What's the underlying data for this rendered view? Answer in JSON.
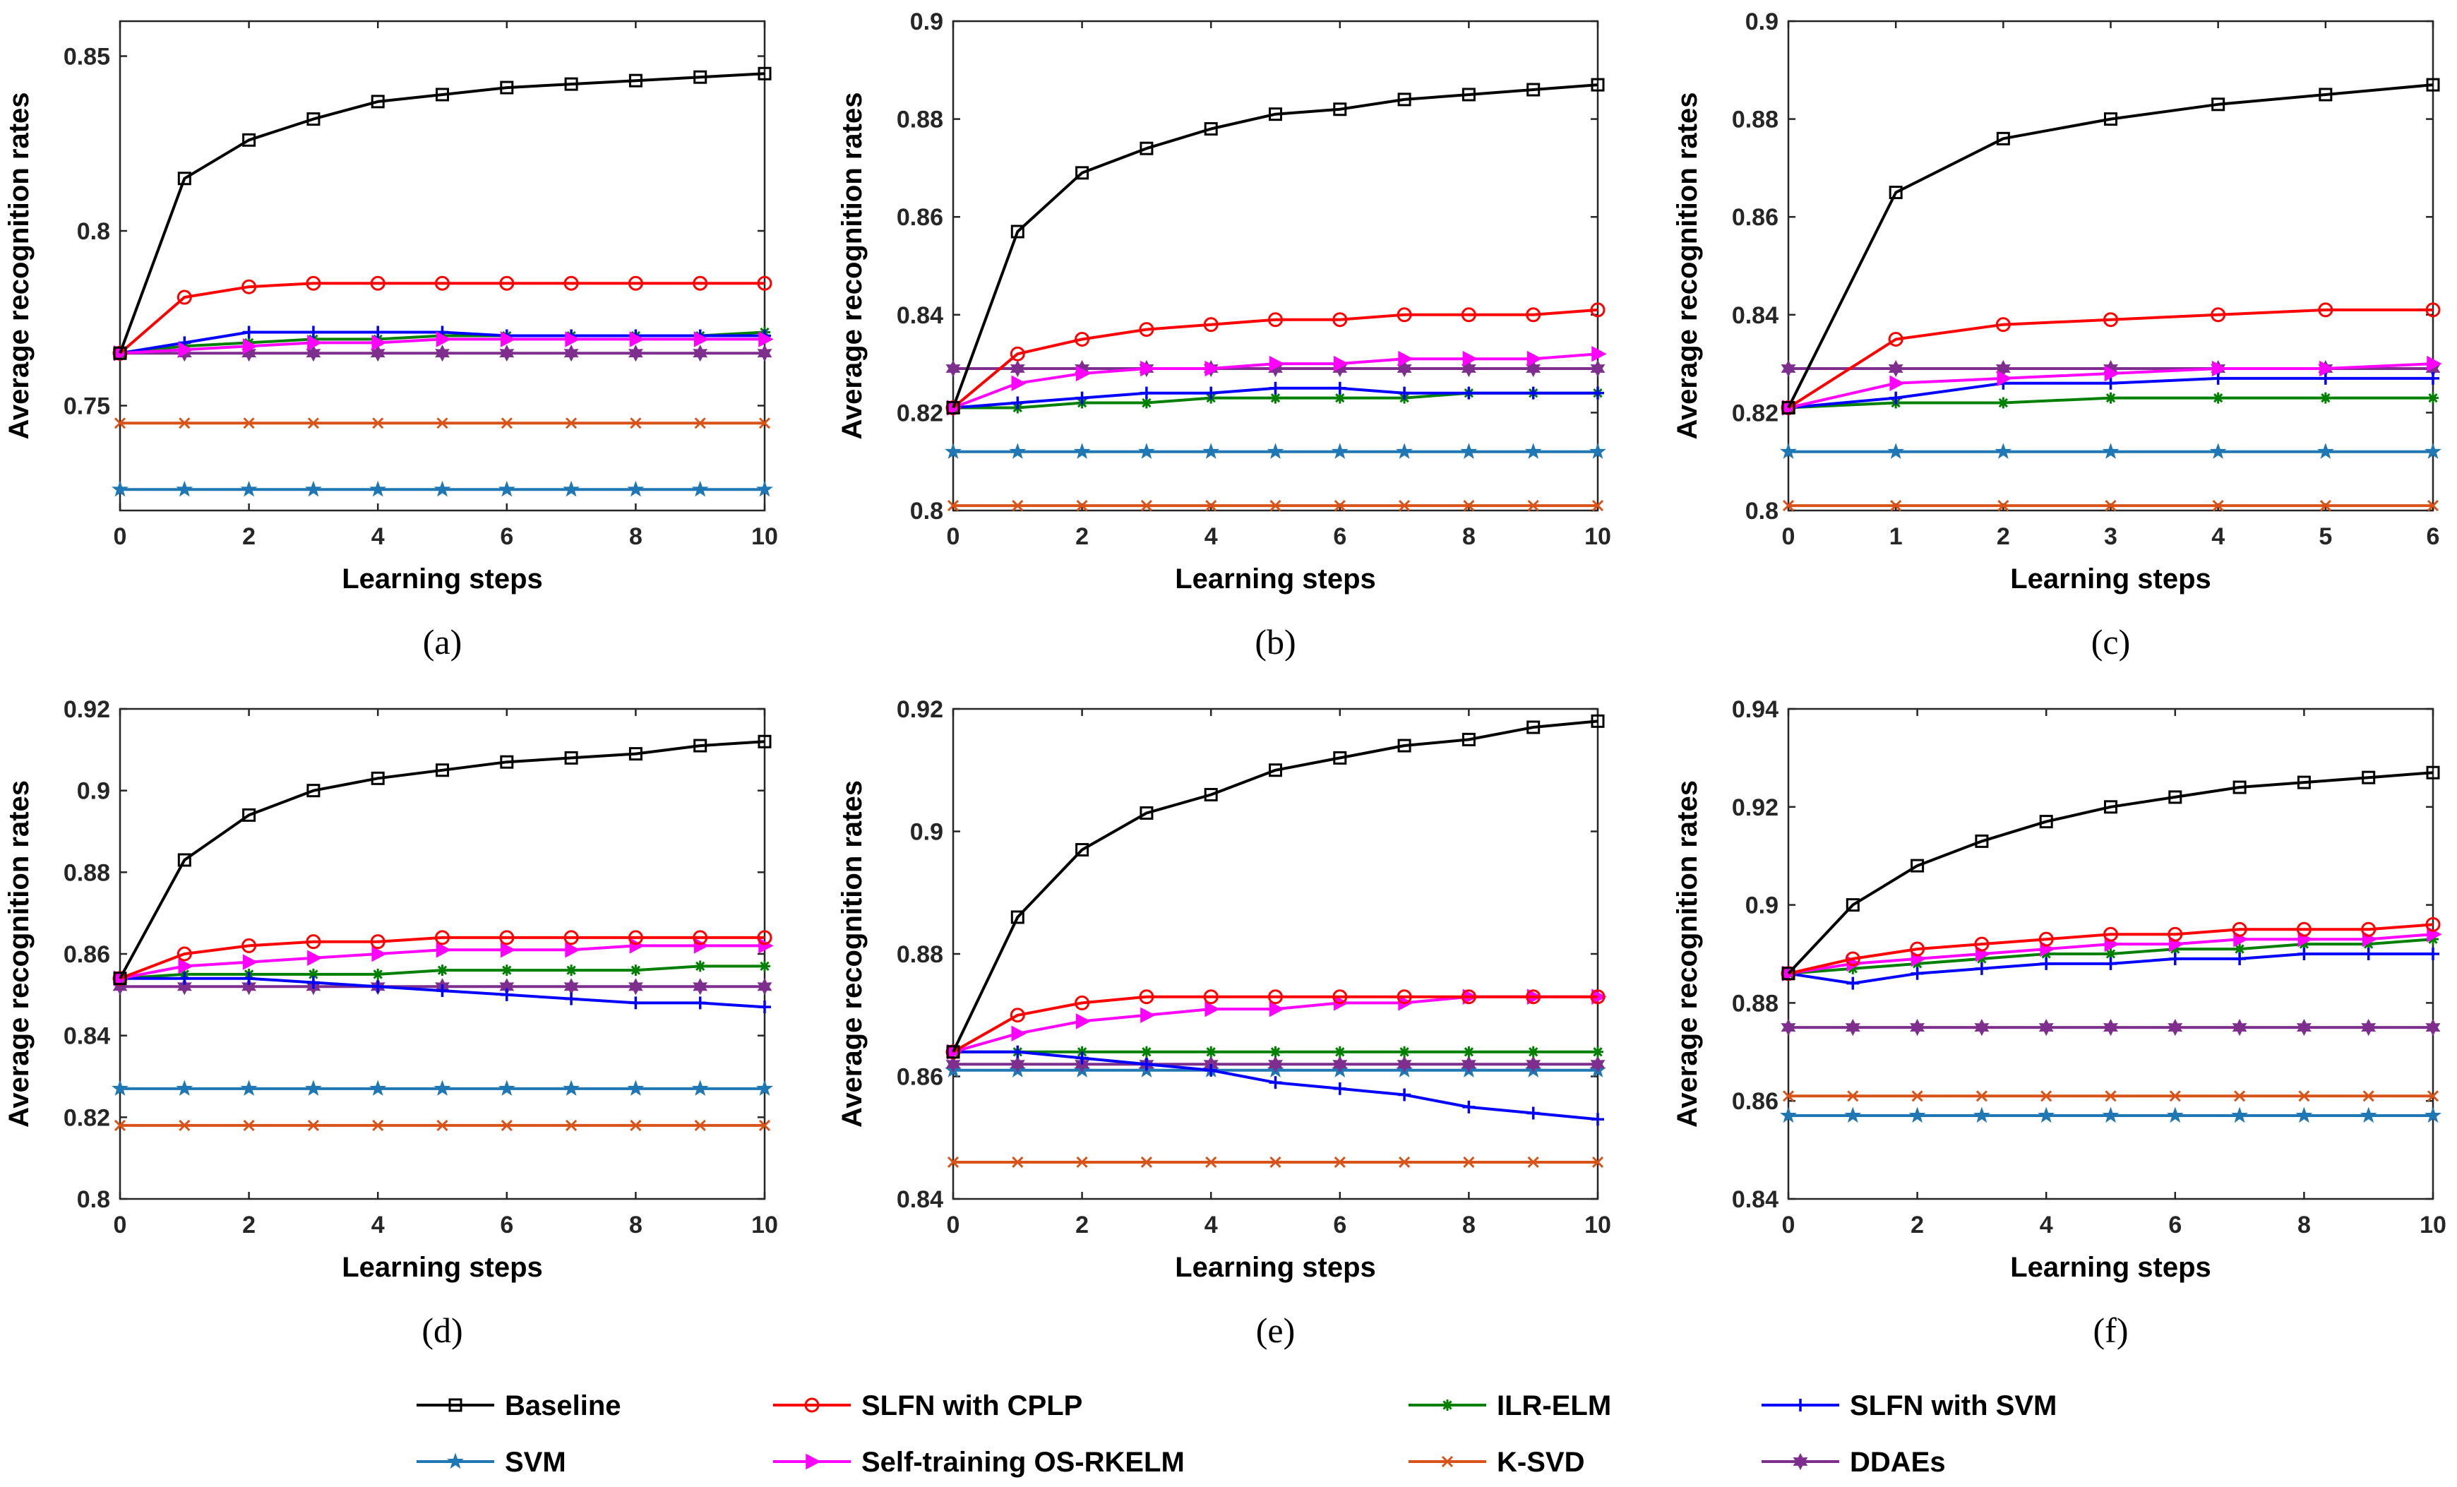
{
  "series_styles": [
    {
      "name": "Baseline",
      "color": "#000000",
      "marker": "square"
    },
    {
      "name": "SLFN with CPLP",
      "color": "#ff0000",
      "marker": "circle"
    },
    {
      "name": "ILR-ELM",
      "color": "#008000",
      "marker": "asterisk"
    },
    {
      "name": "SLFN with SVM",
      "color": "#0000ff",
      "marker": "plus"
    },
    {
      "name": "SVM",
      "color": "#1f77b4",
      "marker": "star"
    },
    {
      "name": "Self-training OS-RKELM",
      "color": "#ff00ff",
      "marker": "triangle-right"
    },
    {
      "name": "K-SVD",
      "color": "#d95319",
      "marker": "x"
    },
    {
      "name": "DDAEs",
      "color": "#7e2f8e",
      "marker": "hexagram"
    }
  ],
  "legend_order": [
    "Baseline",
    "SLFN with CPLP",
    "ILR-ELM",
    "SLFN with SVM",
    "SVM",
    "Self-training OS-RKELM",
    "K-SVD",
    "DDAEs"
  ],
  "chart_data": [
    {
      "type": "line",
      "caption": "(a)",
      "xlabel": "Learning steps",
      "ylabel": "Average recognition rates",
      "x": [
        0,
        1,
        2,
        3,
        4,
        5,
        6,
        7,
        8,
        9,
        10
      ],
      "xlim": [
        0,
        10
      ],
      "ylim": [
        0.72,
        0.86
      ],
      "xticks": [
        0,
        2,
        4,
        6,
        8,
        10
      ],
      "xtick_labels": [
        "0",
        "2",
        "4",
        "6",
        "8",
        "10"
      ],
      "yticks": [
        0.75,
        0.8,
        0.85
      ],
      "ytick_labels": [
        "0.75",
        "0.8",
        "0.85"
      ],
      "series": [
        {
          "name": "Baseline",
          "values": [
            0.765,
            0.815,
            0.826,
            0.832,
            0.837,
            0.839,
            0.841,
            0.842,
            0.843,
            0.844,
            0.845
          ]
        },
        {
          "name": "SLFN with CPLP",
          "values": [
            0.765,
            0.781,
            0.784,
            0.785,
            0.785,
            0.785,
            0.785,
            0.785,
            0.785,
            0.785,
            0.785
          ]
        },
        {
          "name": "ILR-ELM",
          "values": [
            0.765,
            0.767,
            0.768,
            0.769,
            0.769,
            0.77,
            0.77,
            0.77,
            0.77,
            0.77,
            0.771
          ]
        },
        {
          "name": "SLFN with SVM",
          "values": [
            0.765,
            0.768,
            0.771,
            0.771,
            0.771,
            0.771,
            0.77,
            0.77,
            0.77,
            0.77,
            0.77
          ]
        },
        {
          "name": "SVM",
          "values": [
            0.726,
            0.726,
            0.726,
            0.726,
            0.726,
            0.726,
            0.726,
            0.726,
            0.726,
            0.726,
            0.726
          ]
        },
        {
          "name": "Self-training OS-RKELM",
          "values": [
            0.765,
            0.766,
            0.767,
            0.768,
            0.768,
            0.769,
            0.769,
            0.769,
            0.769,
            0.769,
            0.769
          ]
        },
        {
          "name": "K-SVD",
          "values": [
            0.745,
            0.745,
            0.745,
            0.745,
            0.745,
            0.745,
            0.745,
            0.745,
            0.745,
            0.745,
            0.745
          ]
        },
        {
          "name": "DDAEs",
          "values": [
            0.765,
            0.765,
            0.765,
            0.765,
            0.765,
            0.765,
            0.765,
            0.765,
            0.765,
            0.765,
            0.765
          ]
        }
      ]
    },
    {
      "type": "line",
      "caption": "(b)",
      "xlabel": "Learning steps",
      "ylabel": "Average recognition rates",
      "x": [
        0,
        1,
        2,
        3,
        4,
        5,
        6,
        7,
        8,
        9,
        10
      ],
      "xlim": [
        0,
        10
      ],
      "ylim": [
        0.8,
        0.9
      ],
      "xticks": [
        0,
        2,
        4,
        6,
        8,
        10
      ],
      "xtick_labels": [
        "0",
        "2",
        "4",
        "6",
        "8",
        "10"
      ],
      "yticks": [
        0.8,
        0.82,
        0.84,
        0.86,
        0.88,
        0.9
      ],
      "ytick_labels": [
        "0.8",
        "0.82",
        "0.84",
        "0.86",
        "0.88",
        "0.9"
      ],
      "series": [
        {
          "name": "Baseline",
          "values": [
            0.821,
            0.857,
            0.869,
            0.874,
            0.878,
            0.881,
            0.882,
            0.884,
            0.885,
            0.886,
            0.887
          ]
        },
        {
          "name": "SLFN with CPLP",
          "values": [
            0.821,
            0.832,
            0.835,
            0.837,
            0.838,
            0.839,
            0.839,
            0.84,
            0.84,
            0.84,
            0.841
          ]
        },
        {
          "name": "ILR-ELM",
          "values": [
            0.821,
            0.821,
            0.822,
            0.822,
            0.823,
            0.823,
            0.823,
            0.823,
            0.824,
            0.824,
            0.824
          ]
        },
        {
          "name": "SLFN with SVM",
          "values": [
            0.821,
            0.822,
            0.823,
            0.824,
            0.824,
            0.825,
            0.825,
            0.824,
            0.824,
            0.824,
            0.824
          ]
        },
        {
          "name": "SVM",
          "values": [
            0.812,
            0.812,
            0.812,
            0.812,
            0.812,
            0.812,
            0.812,
            0.812,
            0.812,
            0.812,
            0.812
          ]
        },
        {
          "name": "Self-training OS-RKELM",
          "values": [
            0.821,
            0.826,
            0.828,
            0.829,
            0.829,
            0.83,
            0.83,
            0.831,
            0.831,
            0.831,
            0.832
          ]
        },
        {
          "name": "K-SVD",
          "values": [
            0.801,
            0.801,
            0.801,
            0.801,
            0.801,
            0.801,
            0.801,
            0.801,
            0.801,
            0.801,
            0.801
          ]
        },
        {
          "name": "DDAEs",
          "values": [
            0.829,
            0.829,
            0.829,
            0.829,
            0.829,
            0.829,
            0.829,
            0.829,
            0.829,
            0.829,
            0.829
          ]
        }
      ]
    },
    {
      "type": "line",
      "caption": "(c)",
      "xlabel": "Learning steps",
      "ylabel": "Average recognition rates",
      "x": [
        0,
        1,
        2,
        3,
        4,
        5,
        6
      ],
      "xlim": [
        0,
        6
      ],
      "ylim": [
        0.8,
        0.9
      ],
      "xticks": [
        0,
        1,
        2,
        3,
        4,
        5,
        6
      ],
      "xtick_labels": [
        "0",
        "1",
        "2",
        "3",
        "4",
        "5",
        "6"
      ],
      "yticks": [
        0.8,
        0.82,
        0.84,
        0.86,
        0.88,
        0.9
      ],
      "ytick_labels": [
        "0.8",
        "0.82",
        "0.84",
        "0.86",
        "0.88",
        "0.9"
      ],
      "series": [
        {
          "name": "Baseline",
          "values": [
            0.821,
            0.865,
            0.876,
            0.88,
            0.883,
            0.885,
            0.887
          ]
        },
        {
          "name": "SLFN with CPLP",
          "values": [
            0.821,
            0.835,
            0.838,
            0.839,
            0.84,
            0.841,
            0.841
          ]
        },
        {
          "name": "ILR-ELM",
          "values": [
            0.821,
            0.822,
            0.822,
            0.823,
            0.823,
            0.823,
            0.823
          ]
        },
        {
          "name": "SLFN with SVM",
          "values": [
            0.821,
            0.823,
            0.826,
            0.826,
            0.827,
            0.827,
            0.827
          ]
        },
        {
          "name": "SVM",
          "values": [
            0.812,
            0.812,
            0.812,
            0.812,
            0.812,
            0.812,
            0.812
          ]
        },
        {
          "name": "Self-training OS-RKELM",
          "values": [
            0.821,
            0.826,
            0.827,
            0.828,
            0.829,
            0.829,
            0.83
          ]
        },
        {
          "name": "K-SVD",
          "values": [
            0.801,
            0.801,
            0.801,
            0.801,
            0.801,
            0.801,
            0.801
          ]
        },
        {
          "name": "DDAEs",
          "values": [
            0.829,
            0.829,
            0.829,
            0.829,
            0.829,
            0.829,
            0.829
          ]
        }
      ]
    },
    {
      "type": "line",
      "caption": "(d)",
      "xlabel": "Learning steps",
      "ylabel": "Average recognition rates",
      "x": [
        0,
        1,
        2,
        3,
        4,
        5,
        6,
        7,
        8,
        9,
        10
      ],
      "xlim": [
        0,
        10
      ],
      "ylim": [
        0.8,
        0.92
      ],
      "xticks": [
        0,
        2,
        4,
        6,
        8,
        10
      ],
      "xtick_labels": [
        "0",
        "2",
        "4",
        "6",
        "8",
        "10"
      ],
      "yticks": [
        0.8,
        0.82,
        0.84,
        0.86,
        0.88,
        0.9,
        0.92
      ],
      "ytick_labels": [
        "0.8",
        "0.82",
        "0.84",
        "0.86",
        "0.88",
        "0.9",
        "0.92"
      ],
      "series": [
        {
          "name": "Baseline",
          "values": [
            0.854,
            0.883,
            0.894,
            0.9,
            0.903,
            0.905,
            0.907,
            0.908,
            0.909,
            0.911,
            0.912
          ]
        },
        {
          "name": "SLFN with CPLP",
          "values": [
            0.854,
            0.86,
            0.862,
            0.863,
            0.863,
            0.864,
            0.864,
            0.864,
            0.864,
            0.864,
            0.864
          ]
        },
        {
          "name": "ILR-ELM",
          "values": [
            0.854,
            0.855,
            0.855,
            0.855,
            0.855,
            0.856,
            0.856,
            0.856,
            0.856,
            0.857,
            0.857
          ]
        },
        {
          "name": "SLFN with SVM",
          "values": [
            0.854,
            0.854,
            0.854,
            0.853,
            0.852,
            0.851,
            0.85,
            0.849,
            0.848,
            0.848,
            0.847
          ]
        },
        {
          "name": "SVM",
          "values": [
            0.827,
            0.827,
            0.827,
            0.827,
            0.827,
            0.827,
            0.827,
            0.827,
            0.827,
            0.827,
            0.827
          ]
        },
        {
          "name": "Self-training OS-RKELM",
          "values": [
            0.854,
            0.857,
            0.858,
            0.859,
            0.86,
            0.861,
            0.861,
            0.861,
            0.862,
            0.862,
            0.862
          ]
        },
        {
          "name": "K-SVD",
          "values": [
            0.818,
            0.818,
            0.818,
            0.818,
            0.818,
            0.818,
            0.818,
            0.818,
            0.818,
            0.818,
            0.818
          ]
        },
        {
          "name": "DDAEs",
          "values": [
            0.852,
            0.852,
            0.852,
            0.852,
            0.852,
            0.852,
            0.852,
            0.852,
            0.852,
            0.852,
            0.852
          ]
        }
      ]
    },
    {
      "type": "line",
      "caption": "(e)",
      "xlabel": "Learning steps",
      "ylabel": "Average recognition rates",
      "x": [
        0,
        1,
        2,
        3,
        4,
        5,
        6,
        7,
        8,
        9,
        10
      ],
      "xlim": [
        0,
        10
      ],
      "ylim": [
        0.84,
        0.92
      ],
      "xticks": [
        0,
        2,
        4,
        6,
        8,
        10
      ],
      "xtick_labels": [
        "0",
        "2",
        "4",
        "6",
        "8",
        "10"
      ],
      "yticks": [
        0.84,
        0.86,
        0.88,
        0.9,
        0.92
      ],
      "ytick_labels": [
        "0.84",
        "0.86",
        "0.88",
        "0.9",
        "0.92"
      ],
      "series": [
        {
          "name": "Baseline",
          "values": [
            0.864,
            0.886,
            0.897,
            0.903,
            0.906,
            0.91,
            0.912,
            0.914,
            0.915,
            0.917,
            0.918
          ]
        },
        {
          "name": "SLFN with CPLP",
          "values": [
            0.864,
            0.87,
            0.872,
            0.873,
            0.873,
            0.873,
            0.873,
            0.873,
            0.873,
            0.873,
            0.873
          ]
        },
        {
          "name": "ILR-ELM",
          "values": [
            0.864,
            0.864,
            0.864,
            0.864,
            0.864,
            0.864,
            0.864,
            0.864,
            0.864,
            0.864,
            0.864
          ]
        },
        {
          "name": "SLFN with SVM",
          "values": [
            0.864,
            0.864,
            0.863,
            0.862,
            0.861,
            0.859,
            0.858,
            0.857,
            0.855,
            0.854,
            0.853
          ]
        },
        {
          "name": "SVM",
          "values": [
            0.861,
            0.861,
            0.861,
            0.861,
            0.861,
            0.861,
            0.861,
            0.861,
            0.861,
            0.861,
            0.861
          ]
        },
        {
          "name": "Self-training OS-RKELM",
          "values": [
            0.864,
            0.867,
            0.869,
            0.87,
            0.871,
            0.871,
            0.872,
            0.872,
            0.873,
            0.873,
            0.873
          ]
        },
        {
          "name": "K-SVD",
          "values": [
            0.846,
            0.846,
            0.846,
            0.846,
            0.846,
            0.846,
            0.846,
            0.846,
            0.846,
            0.846,
            0.846
          ]
        },
        {
          "name": "DDAEs",
          "values": [
            0.862,
            0.862,
            0.862,
            0.862,
            0.862,
            0.862,
            0.862,
            0.862,
            0.862,
            0.862,
            0.862
          ]
        }
      ]
    },
    {
      "type": "line",
      "caption": "(f)",
      "xlabel": "Learning steps",
      "ylabel": "Average recognition rates",
      "x": [
        0,
        1,
        2,
        3,
        4,
        5,
        6,
        7,
        8,
        9,
        10
      ],
      "xlim": [
        0,
        10
      ],
      "ylim": [
        0.84,
        0.94
      ],
      "xticks": [
        0,
        2,
        4,
        6,
        8,
        10
      ],
      "xtick_labels": [
        "0",
        "2",
        "4",
        "6",
        "8",
        "10"
      ],
      "yticks": [
        0.84,
        0.86,
        0.88,
        0.9,
        0.92,
        0.94
      ],
      "ytick_labels": [
        "0.84",
        "0.86",
        "0.88",
        "0.9",
        "0.92",
        "0.94"
      ],
      "series": [
        {
          "name": "Baseline",
          "values": [
            0.886,
            0.9,
            0.908,
            0.913,
            0.917,
            0.92,
            0.922,
            0.924,
            0.925,
            0.926,
            0.927
          ]
        },
        {
          "name": "SLFN with CPLP",
          "values": [
            0.886,
            0.889,
            0.891,
            0.892,
            0.893,
            0.894,
            0.894,
            0.895,
            0.895,
            0.895,
            0.896
          ]
        },
        {
          "name": "ILR-ELM",
          "values": [
            0.886,
            0.887,
            0.888,
            0.889,
            0.89,
            0.89,
            0.891,
            0.891,
            0.892,
            0.892,
            0.893
          ]
        },
        {
          "name": "SLFN with SVM",
          "values": [
            0.886,
            0.884,
            0.886,
            0.887,
            0.888,
            0.888,
            0.889,
            0.889,
            0.89,
            0.89,
            0.89
          ]
        },
        {
          "name": "SVM",
          "values": [
            0.857,
            0.857,
            0.857,
            0.857,
            0.857,
            0.857,
            0.857,
            0.857,
            0.857,
            0.857,
            0.857
          ]
        },
        {
          "name": "Self-training OS-RKELM",
          "values": [
            0.886,
            0.888,
            0.889,
            0.89,
            0.891,
            0.892,
            0.892,
            0.893,
            0.893,
            0.893,
            0.894
          ]
        },
        {
          "name": "K-SVD",
          "values": [
            0.861,
            0.861,
            0.861,
            0.861,
            0.861,
            0.861,
            0.861,
            0.861,
            0.861,
            0.861,
            0.861
          ]
        },
        {
          "name": "DDAEs",
          "values": [
            0.875,
            0.875,
            0.875,
            0.875,
            0.875,
            0.875,
            0.875,
            0.875,
            0.875,
            0.875,
            0.875
          ]
        }
      ]
    }
  ]
}
